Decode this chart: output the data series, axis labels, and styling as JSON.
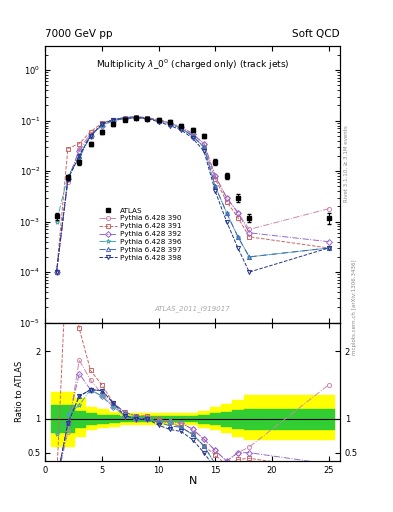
{
  "title_top_left": "7000 GeV pp",
  "title_top_right": "Soft QCD",
  "main_title": "Multiplicity $\\lambda\\_0^0$ (charged only) (track jets)",
  "watermark": "ATLAS_2011_I919017",
  "right_label": "Rivet 3.1.10, ≥ 3.1M events",
  "right_label2": "mcplots.cern.ch [arXiv:1306.3436]",
  "xlabel": "N",
  "ylabel_ratio": "Ratio to ATLAS",
  "xlim": [
    0,
    26
  ],
  "ylim_main": [
    1e-05,
    3.0
  ],
  "ylim_ratio": [
    0.38,
    2.42
  ],
  "atlas_x": [
    1,
    2,
    3,
    4,
    5,
    6,
    7,
    8,
    9,
    10,
    11,
    12,
    13,
    14,
    15,
    16,
    17,
    18,
    25
  ],
  "atlas_y": [
    0.0013,
    0.0075,
    0.015,
    0.035,
    0.06,
    0.085,
    0.105,
    0.115,
    0.11,
    0.105,
    0.095,
    0.08,
    0.065,
    0.05,
    0.015,
    0.008,
    0.003,
    0.0012,
    0.0012
  ],
  "atlas_yerr": [
    0.0002,
    0.0008,
    0.0015,
    0.003,
    0.005,
    0.007,
    0.008,
    0.009,
    0.009,
    0.008,
    0.007,
    0.006,
    0.005,
    0.004,
    0.002,
    0.001,
    0.0005,
    0.0002,
    0.0003
  ],
  "series": [
    {
      "label": "Pythia 6.428 390",
      "color": "#cc88aa",
      "marker": "o",
      "linestyle": "-.",
      "x": [
        1,
        2,
        3,
        4,
        5,
        6,
        7,
        8,
        9,
        10,
        11,
        12,
        13,
        14,
        15,
        16,
        17,
        18,
        25
      ],
      "y": [
        0.0001,
        0.006,
        0.028,
        0.055,
        0.082,
        0.102,
        0.11,
        0.115,
        0.11,
        0.102,
        0.092,
        0.075,
        0.055,
        0.035,
        0.008,
        0.003,
        0.0015,
        0.0007,
        0.0018
      ]
    },
    {
      "label": "Pythia 6.428 391",
      "color": "#cc6666",
      "marker": "s",
      "linestyle": "--",
      "x": [
        1,
        2,
        3,
        4,
        5,
        6,
        7,
        8,
        9,
        10,
        11,
        12,
        13,
        14,
        15,
        16,
        17,
        18,
        25
      ],
      "y": [
        0.0001,
        0.028,
        0.035,
        0.06,
        0.09,
        0.105,
        0.115,
        0.12,
        0.115,
        0.105,
        0.09,
        0.07,
        0.05,
        0.03,
        0.007,
        0.0025,
        0.0012,
        0.0005,
        0.0003
      ]
    },
    {
      "label": "Pythia 6.428 392",
      "color": "#9966cc",
      "marker": "D",
      "linestyle": "-.",
      "x": [
        1,
        2,
        3,
        4,
        5,
        6,
        7,
        8,
        9,
        10,
        11,
        12,
        13,
        14,
        15,
        16,
        17,
        18,
        25
      ],
      "y": [
        0.0001,
        0.007,
        0.025,
        0.05,
        0.08,
        0.1,
        0.11,
        0.115,
        0.11,
        0.1,
        0.09,
        0.075,
        0.055,
        0.035,
        0.008,
        0.003,
        0.0015,
        0.0006,
        0.0004
      ]
    },
    {
      "label": "Pythia 6.428 396",
      "color": "#44aaaa",
      "marker": "*",
      "linestyle": "-.",
      "x": [
        1,
        2,
        3,
        4,
        5,
        6,
        7,
        8,
        9,
        10,
        11,
        12,
        13,
        14,
        15,
        16,
        17,
        18,
        25
      ],
      "y": [
        0.001,
        0.008,
        0.018,
        0.05,
        0.08,
        0.1,
        0.11,
        0.115,
        0.112,
        0.1,
        0.09,
        0.07,
        0.05,
        0.03,
        0.005,
        0.0015,
        0.0005,
        0.0002,
        0.0003
      ]
    },
    {
      "label": "Pythia 6.428 397",
      "color": "#4466bb",
      "marker": "^",
      "linestyle": "-.",
      "x": [
        1,
        2,
        3,
        4,
        5,
        6,
        7,
        8,
        9,
        10,
        11,
        12,
        13,
        14,
        15,
        16,
        17,
        18,
        25
      ],
      "y": [
        0.0001,
        0.007,
        0.02,
        0.05,
        0.085,
        0.105,
        0.115,
        0.12,
        0.112,
        0.1,
        0.085,
        0.07,
        0.05,
        0.03,
        0.005,
        0.0015,
        0.0005,
        0.0002,
        0.0003
      ]
    },
    {
      "label": "Pythia 6.428 398",
      "color": "#223388",
      "marker": "v",
      "linestyle": "--",
      "x": [
        1,
        2,
        3,
        4,
        5,
        6,
        7,
        8,
        9,
        10,
        11,
        12,
        13,
        14,
        15,
        16,
        17,
        18,
        25
      ],
      "y": [
        0.0001,
        0.007,
        0.02,
        0.05,
        0.085,
        0.105,
        0.11,
        0.115,
        0.11,
        0.095,
        0.08,
        0.065,
        0.045,
        0.025,
        0.004,
        0.001,
        0.0003,
        0.0001,
        0.0003
      ]
    }
  ],
  "band_yellow_edges": [
    0.5,
    1.5,
    2.5,
    3.5,
    4.5,
    5.5,
    6.5,
    7.5,
    8.5,
    9.5,
    10.5,
    11.5,
    12.5,
    13.5,
    14.5,
    15.5,
    16.5,
    17.5,
    25.5
  ],
  "band_yellow_lo": [
    0.6,
    0.6,
    0.75,
    0.85,
    0.88,
    0.9,
    0.92,
    0.92,
    0.92,
    0.92,
    0.92,
    0.92,
    0.92,
    0.88,
    0.85,
    0.8,
    0.75,
    0.7,
    0.6
  ],
  "band_yellow_hi": [
    1.4,
    1.4,
    1.3,
    1.18,
    1.14,
    1.1,
    1.08,
    1.08,
    1.08,
    1.08,
    1.08,
    1.08,
    1.08,
    1.12,
    1.18,
    1.22,
    1.28,
    1.35,
    1.5
  ],
  "band_green_edges": [
    0.5,
    1.5,
    2.5,
    3.5,
    4.5,
    5.5,
    6.5,
    7.5,
    8.5,
    9.5,
    10.5,
    11.5,
    12.5,
    13.5,
    14.5,
    15.5,
    16.5,
    17.5,
    25.5
  ],
  "band_green_lo": [
    0.8,
    0.8,
    0.88,
    0.92,
    0.94,
    0.95,
    0.96,
    0.96,
    0.96,
    0.96,
    0.96,
    0.96,
    0.96,
    0.94,
    0.92,
    0.9,
    0.87,
    0.85,
    0.78
  ],
  "band_green_hi": [
    1.2,
    1.2,
    1.12,
    1.08,
    1.06,
    1.05,
    1.04,
    1.04,
    1.04,
    1.04,
    1.04,
    1.04,
    1.04,
    1.06,
    1.08,
    1.1,
    1.13,
    1.15,
    1.22
  ]
}
